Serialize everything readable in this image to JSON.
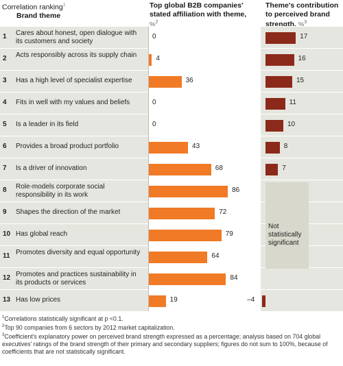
{
  "headers": {
    "ranking": "Correlation ranking",
    "theme": "Brand theme",
    "affiliation": "Top global B2B companies' stated affiliation with theme,",
    "affiliation_unit": "%",
    "contribution": "Theme's contribution to perceived brand strength,",
    "contribution_unit": "%"
  },
  "chart_data": {
    "type": "bar",
    "categories": [
      "Cares about honest, open dialogue with its customers and society",
      "Acts responsibly across its supply chain",
      "Has a high level of specialist expertise",
      "Fits in well with my values and beliefs",
      "Is a leader in its field",
      "Provides a broad product portfolio",
      "Is a driver of innovation",
      "Role-models corporate social responsibility in its work",
      "Shapes the direction of the market",
      "Has global reach",
      "Promotes diversity and equal opportunity",
      "Promotes and practices sustainability in its products or services",
      "Has low prices"
    ],
    "ranks": [
      "1",
      "2",
      "3",
      "4",
      "5",
      "6",
      "7",
      "8",
      "9",
      "10",
      "11",
      "12",
      "13"
    ],
    "series": [
      {
        "name": "Top global B2B companies' stated affiliation with theme, %",
        "values": [
          0,
          4,
          36,
          0,
          0,
          43,
          68,
          86,
          72,
          79,
          64,
          84,
          19
        ]
      },
      {
        "name": "Theme's contribution to perceived brand strength, %",
        "values": [
          17,
          16,
          15,
          11,
          10,
          8,
          7,
          null,
          null,
          null,
          null,
          null,
          -4
        ]
      }
    ],
    "value_labels_2": [
      "0",
      "4",
      "36",
      "0",
      "0",
      "43",
      "68",
      "86",
      "72",
      "79",
      "64",
      "84",
      "19"
    ],
    "value_labels_3": [
      "17",
      "16",
      "15",
      "11",
      "10",
      "8",
      "7",
      "",
      "",
      "",
      "",
      "",
      "–4"
    ]
  },
  "not_significant": "Not statistically significant",
  "footnotes": [
    "Correlations statistically significant at p <0.1.",
    "Top 90 companies from 6 sectors by 2012 market capitalization.",
    "Coefficient's explanatory power on perceived brand strength expressed as a percentage; analysis based on 704 global executives' ratings of the brand strength of their primary and secondary suppliers; figures do not sum to 100%, because of coefficients that are not statistically significant."
  ],
  "colors": {
    "orange": "#f07a26",
    "maroon": "#8b2a1a",
    "row_bg": "#e6e6e0",
    "ns_box": "#d8d8cc"
  }
}
